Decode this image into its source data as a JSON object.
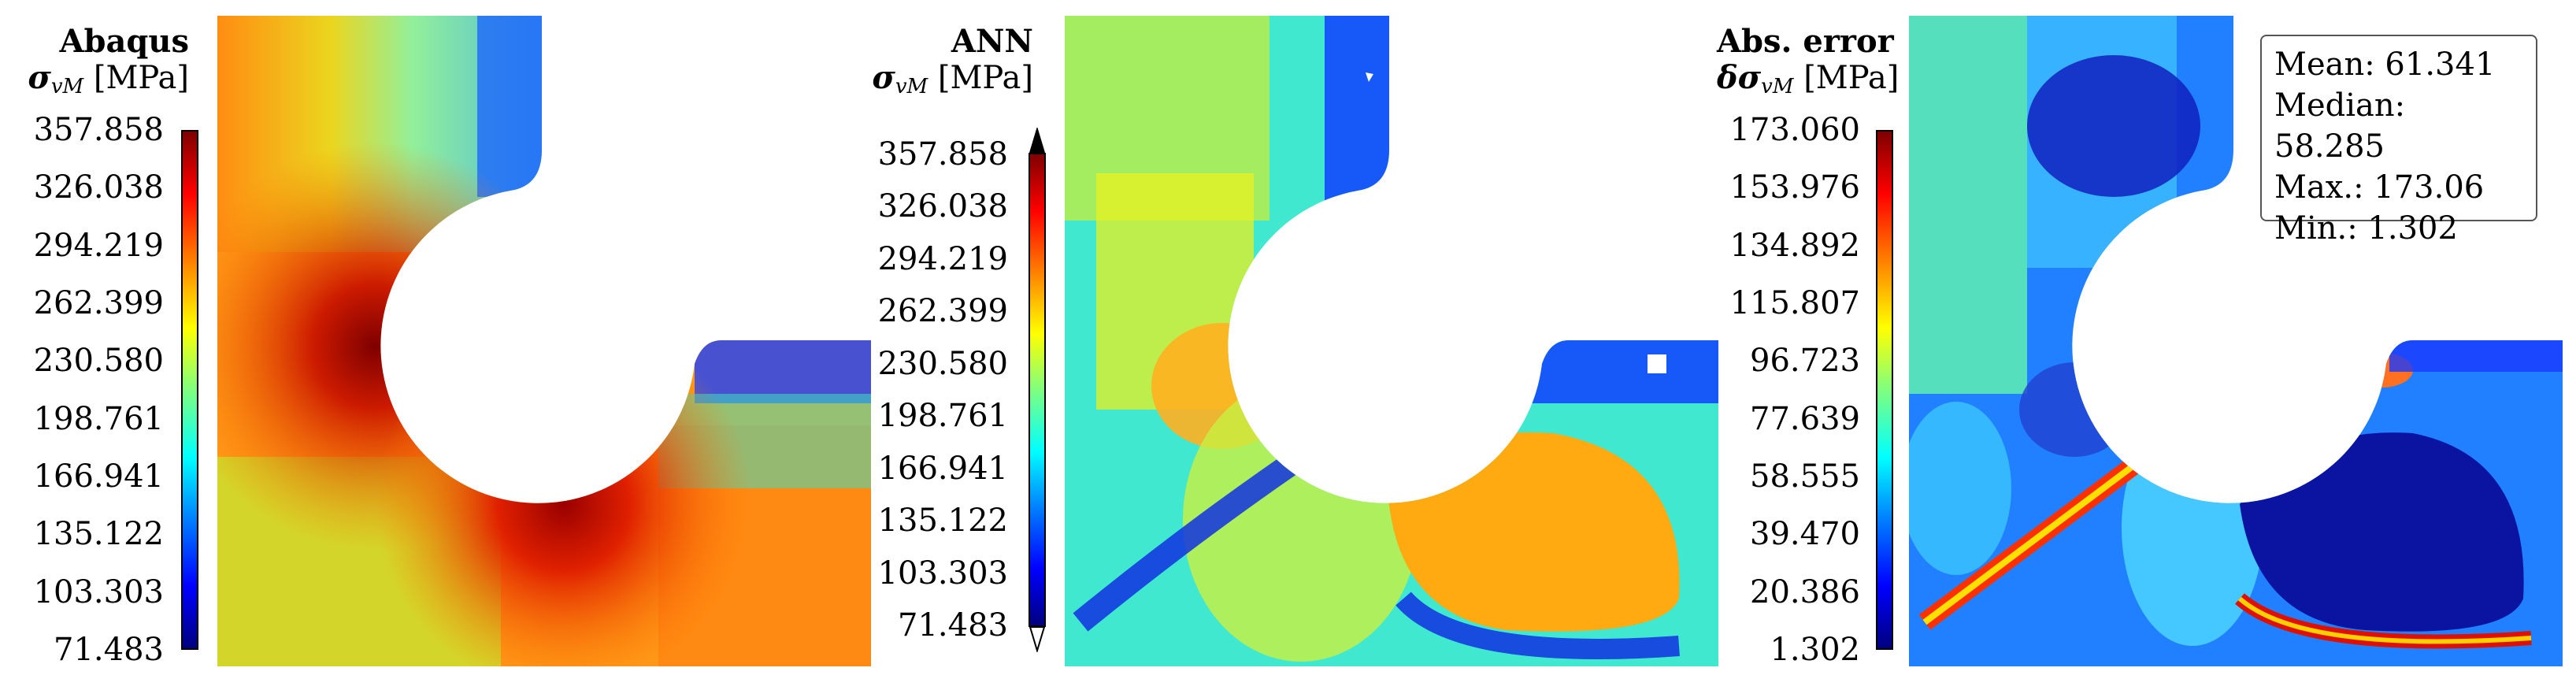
{
  "panels": [
    {
      "title": "Abaqus",
      "quantity_symbol": "σ",
      "quantity_sub": "vM",
      "quantity_unit": "[MPa]",
      "ticks": [
        "357.858",
        "326.038",
        "294.219",
        "262.399",
        "230.580",
        "198.761",
        "166.941",
        "135.122",
        "103.303",
        "71.483"
      ]
    },
    {
      "title": "ANN",
      "quantity_symbol": "σ",
      "quantity_sub": "vM",
      "quantity_unit": "[MPa]",
      "ticks": [
        "357.858",
        "326.038",
        "294.219",
        "262.399",
        "230.580",
        "198.761",
        "166.941",
        "135.122",
        "103.303",
        "71.483"
      ]
    },
    {
      "title": "Abs. error",
      "quantity_symbol": "δσ",
      "quantity_sub": "vM",
      "quantity_unit": "[MPa]",
      "ticks": [
        "173.060",
        "153.976",
        "134.892",
        "115.807",
        "96.723",
        "77.639",
        "58.555",
        "39.470",
        "20.386",
        "1.302"
      ]
    }
  ],
  "stats": {
    "mean": "Mean: 61.341",
    "median": "Median: 58.285",
    "max": "Max.: 173.06",
    "min": "Min.: 1.302"
  }
}
